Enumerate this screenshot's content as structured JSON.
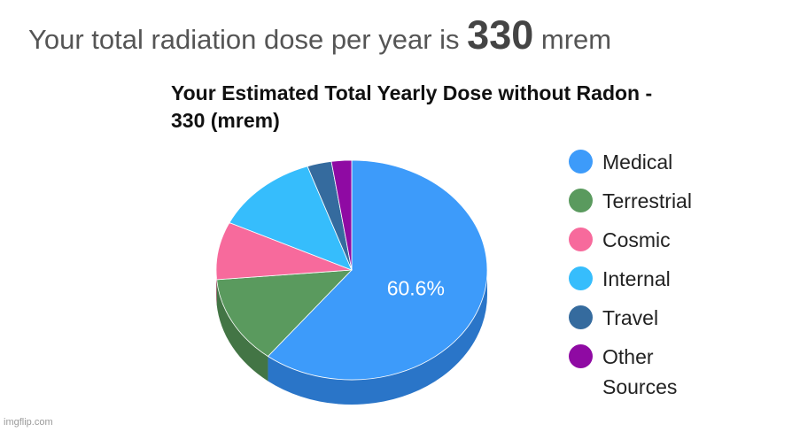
{
  "headline": {
    "prefix": "Your total radiation dose per year is",
    "value": "330",
    "unit": "mrem"
  },
  "watermark": "imgflip.com",
  "chart_data": {
    "type": "pie",
    "title": "Your Estimated Total Yearly Dose without Radon - 330 (mrem)",
    "title_line1": "Your Estimated Total Yearly Dose without Radon -",
    "title_line2": "330 (mrem)",
    "three_d": true,
    "legend_position": "right",
    "slices": [
      {
        "name": "Medical",
        "value": 60.6,
        "color": "#3d9bfa",
        "side_color": "#2a75c8",
        "label": "60.6%"
      },
      {
        "name": "Terrestrial",
        "value": 13.0,
        "color": "#5a9a5e",
        "side_color": "#437545",
        "label": ""
      },
      {
        "name": "Cosmic",
        "value": 8.5,
        "color": "#f76a9c",
        "side_color": "#c24f7a",
        "label": ""
      },
      {
        "name": "Internal",
        "value": 12.6,
        "color": "#36bdfc",
        "side_color": "#2890c4",
        "label": ""
      },
      {
        "name": "Travel",
        "value": 2.9,
        "color": "#356b9e",
        "side_color": "#284f75",
        "label": ""
      },
      {
        "name": "Other Sources",
        "value": 2.4,
        "color": "#8f0aa3",
        "side_color": "#6a0779",
        "label": ""
      }
    ]
  }
}
